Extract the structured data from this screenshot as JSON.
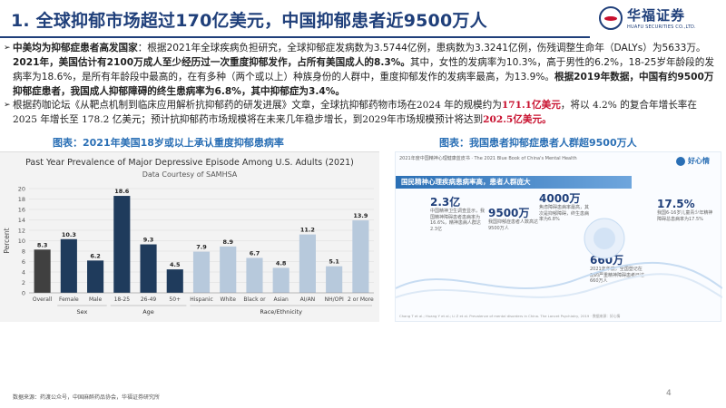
{
  "header": {
    "title": "1. 全球抑郁市场超过170亿美元，中国抑郁患者近9500万人",
    "logo_cn": "华福证券",
    "logo_en": "HUAFU SECURITIES CO.,LTD."
  },
  "para1": {
    "s1": "中美均为抑郁症患者高发国家",
    "s2": "：根据2021年全球疾病负担研究，全球抑郁症发病数为3.5744亿例，患病数为3.3241亿例，伤残调整生命年（DALYs）为5633万。",
    "s3": "2021年，美国估计有2100万成人至少经历过一次重度抑郁发作，占所有美国成人的8.3%。",
    "s4": "其中，女性的发病率为10.3%，高于男性的6.2%，18-25岁年龄段的发病率为18.6%，是所有年龄段中最高的，在有多种（两个或以上）种族身份的人群中，重度抑郁发作的发病率最高，为13.9%。",
    "s5": "根据2019年数据，中国有约9500万抑郁症患者，我国成人抑郁障碍的终生患病率为6.8%，其中抑郁症为3.4%。"
  },
  "para2": {
    "s1": "根据药咖论坛《从靶点机制到临床应用解析抗抑郁药的研发进展》文章，全球抗抑郁药物市场在2024 年的规模约为",
    "s2": "171.1亿美元",
    "s3": "，将以 4.2% 的复合年增长率在 2025 年增长至 178.2 亿美元；预计抗抑郁药市场规模将在未来几年稳步增长，到2029年市场规模预计将达到",
    "s4": "202.5亿美元。"
  },
  "captions": {
    "left": "图表：2021年美国18岁或以上承认重度抑郁患病率",
    "right": "图表：我国患者抑郁症患者人群超9500万人"
  },
  "chart_data": {
    "type": "bar",
    "title": "Past Year Prevalence of Major Depressive Episode Among U.S. Adults (2021)",
    "subtitle": "Data Courtesy of SAMHSA",
    "ylabel": "Percent",
    "ylim": [
      0,
      20
    ],
    "yticks": [
      "0",
      "2",
      "4",
      "6",
      "8",
      "10",
      "12",
      "14",
      "16",
      "18",
      "20"
    ],
    "grid": true,
    "categories": [
      "Overall",
      "Female",
      "Male",
      "18-25",
      "26-49",
      "50+",
      "Hispanic",
      "White",
      "Black or",
      "Asian",
      "AI/AN",
      "NH/OPI",
      "2 or More"
    ],
    "values": [
      8.3,
      10.3,
      6.2,
      18.6,
      9.3,
      4.5,
      7.9,
      8.9,
      6.7,
      4.8,
      11.2,
      5.1,
      13.9
    ],
    "value_labels": [
      "8.3",
      "10.3",
      "6.2",
      "18.6",
      "9.3",
      "4.5",
      "7.9",
      "8.9",
      "6.7",
      "4.8",
      "11.2",
      "5.1",
      "13.9"
    ],
    "groups": [
      {
        "label": "Sex",
        "start": 1,
        "end": 2
      },
      {
        "label": "Age",
        "start": 3,
        "end": 5
      },
      {
        "label": "Race/Ethnicity",
        "start": 6,
        "end": 12
      }
    ],
    "colors": {
      "overall": "#404040",
      "sex": "#1f3b5c",
      "age": "#1f3b5c",
      "race": "#b7c9dc"
    }
  },
  "infographic": {
    "head": "2021年度中国精神心理健康蓝皮书 · The 2021 Blue Book of China's Mental Health",
    "brand": "好心情",
    "banner": "国民精神心理疾病患病率高，患者人群庞大",
    "stats": [
      {
        "n": "2.3亿",
        "t": "中国精神卫生调查显示，我国精神障碍患者患病率为16.6%，精神患病人群达2.3亿"
      },
      {
        "n": "9500万",
        "t": "我国抑郁症患者人数高达9500万人"
      },
      {
        "n": "4000万",
        "t": "焦虑障碍患病率最高，其次是抑郁障碍，终生患病率为6.8%"
      },
      {
        "n": "660万",
        "t": "2021年年底，全国登记在册的严重精神障碍患者已达660万人"
      },
      {
        "n": "17.5%",
        "t": "我国6-16岁儿童青少年精神障碍总患病率为17.5%"
      }
    ],
    "foot": "Chang T et al.; Huang Y et al.; Li Z et al. Prevalence of mental disorders in China. The Lancet Psychiatry, 2019 · 数据来源：好心情"
  },
  "footer": {
    "source": "数据来源：药渡公众号，中国麻醉药品协会，华福证券研究所",
    "page": "4"
  }
}
